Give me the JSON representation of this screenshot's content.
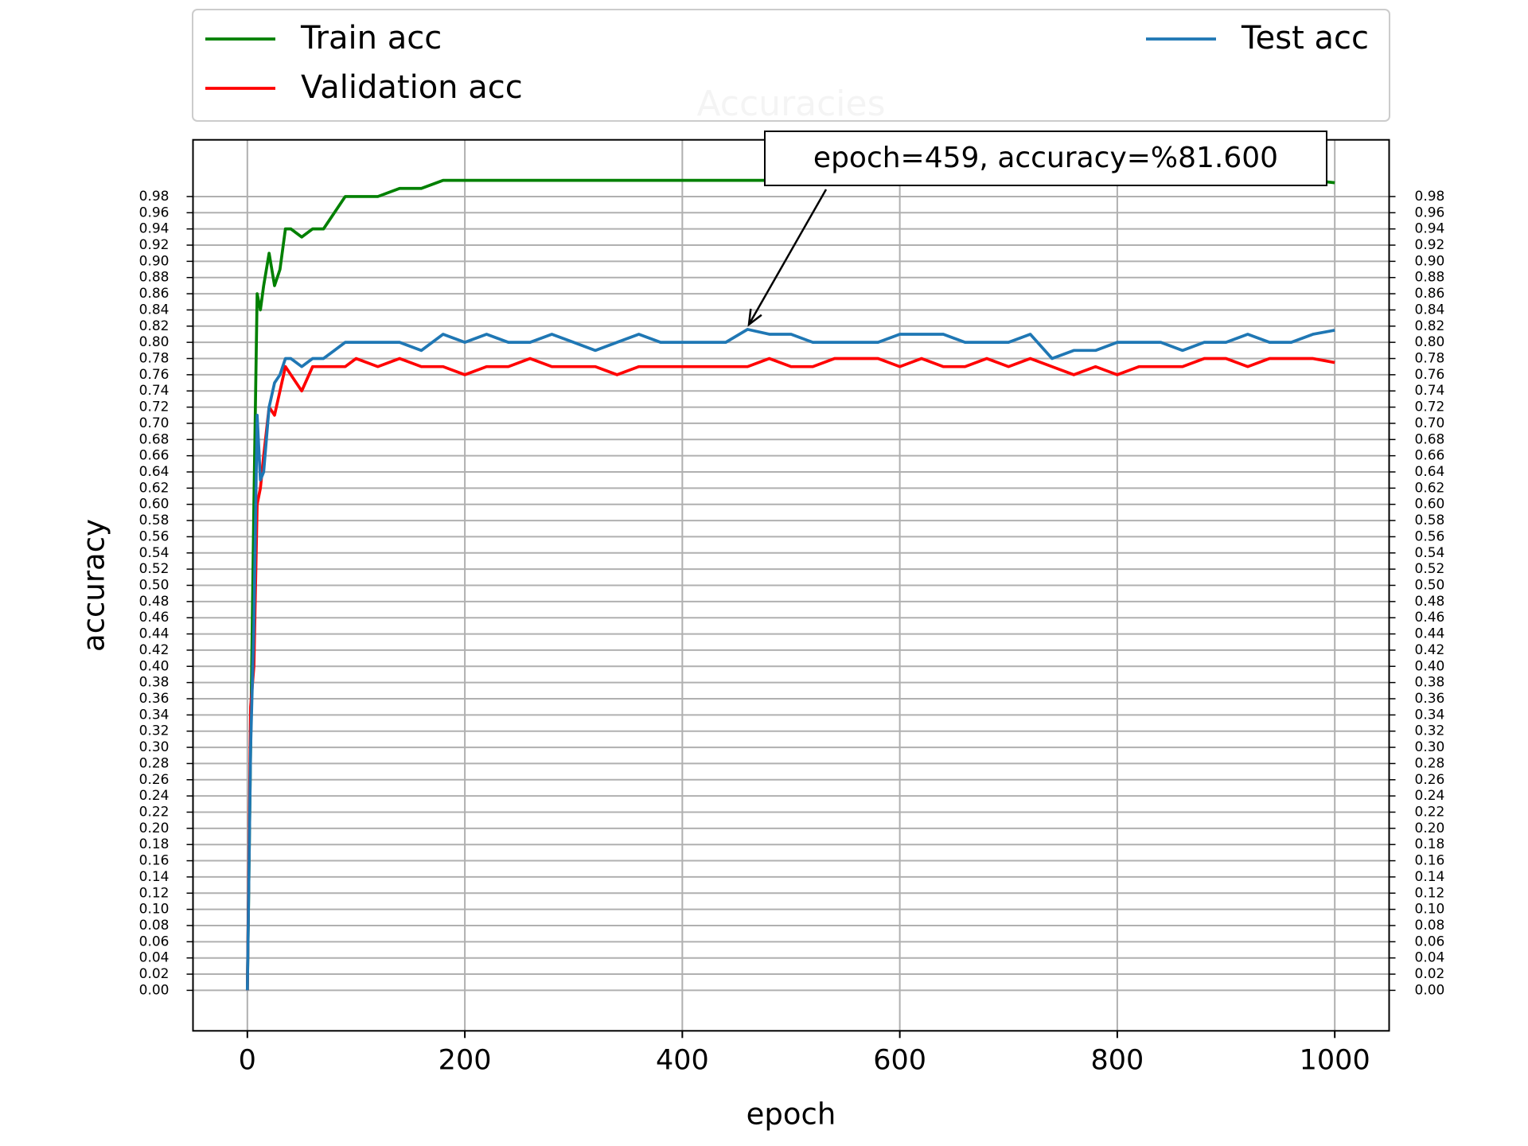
{
  "chart_data": {
    "type": "line",
    "title": "Accuracies",
    "xlabel": "epoch",
    "ylabel": "accuracy",
    "x": [
      0,
      3,
      6,
      9,
      12,
      15,
      20,
      25,
      30,
      35,
      40,
      50,
      60,
      70,
      80,
      90,
      100,
      120,
      140,
      160,
      180,
      200,
      220,
      240,
      260,
      280,
      300,
      320,
      340,
      360,
      380,
      400,
      420,
      440,
      460,
      480,
      500,
      520,
      540,
      560,
      580,
      600,
      620,
      640,
      660,
      680,
      700,
      720,
      740,
      760,
      780,
      800,
      820,
      840,
      860,
      880,
      900,
      920,
      940,
      960,
      980,
      1000
    ],
    "series": [
      {
        "name": "Train acc",
        "color": "#008000",
        "values": [
          0,
          0.3,
          0.6,
          0.86,
          0.84,
          0.87,
          0.91,
          0.87,
          0.89,
          0.94,
          0.94,
          0.93,
          0.94,
          0.94,
          0.96,
          0.98,
          0.98,
          0.98,
          0.99,
          0.99,
          1.0,
          1.0,
          1.0,
          1.0,
          1.0,
          1.0,
          1.0,
          1.0,
          1.0,
          1.0,
          1.0,
          1.0,
          1.0,
          1.0,
          1.0,
          1.0,
          1.0,
          1.0,
          1.0,
          1.0,
          1.0,
          1.0,
          1.0,
          1.0,
          1.0,
          1.0,
          1.0,
          1.0,
          1.0,
          1.0,
          1.0,
          1.0,
          1.0,
          1.0,
          1.0,
          1.0,
          1.0,
          1.0,
          1.0,
          1.0,
          1.0,
          0.997
        ]
      },
      {
        "name": "Validation acc",
        "color": "#ff0000",
        "values": [
          0,
          0.35,
          0.4,
          0.6,
          0.62,
          0.66,
          0.72,
          0.71,
          0.74,
          0.77,
          0.76,
          0.74,
          0.77,
          0.77,
          0.77,
          0.77,
          0.78,
          0.77,
          0.78,
          0.77,
          0.77,
          0.76,
          0.77,
          0.77,
          0.78,
          0.77,
          0.77,
          0.77,
          0.76,
          0.77,
          0.77,
          0.77,
          0.77,
          0.77,
          0.77,
          0.78,
          0.77,
          0.77,
          0.78,
          0.78,
          0.78,
          0.77,
          0.78,
          0.77,
          0.77,
          0.78,
          0.77,
          0.78,
          0.77,
          0.76,
          0.77,
          0.76,
          0.77,
          0.77,
          0.77,
          0.78,
          0.78,
          0.77,
          0.78,
          0.78,
          0.78,
          0.775
        ]
      },
      {
        "name": "Test acc",
        "color": "#1f77b4",
        "values": [
          0,
          0.3,
          0.45,
          0.71,
          0.63,
          0.64,
          0.72,
          0.75,
          0.76,
          0.78,
          0.78,
          0.77,
          0.78,
          0.78,
          0.79,
          0.8,
          0.8,
          0.8,
          0.8,
          0.79,
          0.81,
          0.8,
          0.81,
          0.8,
          0.8,
          0.81,
          0.8,
          0.79,
          0.8,
          0.81,
          0.8,
          0.8,
          0.8,
          0.8,
          0.816,
          0.81,
          0.81,
          0.8,
          0.8,
          0.8,
          0.8,
          0.81,
          0.81,
          0.81,
          0.8,
          0.8,
          0.8,
          0.81,
          0.78,
          0.79,
          0.79,
          0.8,
          0.8,
          0.8,
          0.79,
          0.8,
          0.8,
          0.81,
          0.8,
          0.8,
          0.81,
          0.815
        ]
      }
    ],
    "annotation": {
      "text": "epoch=459, accuracy=%81.600",
      "x": 459,
      "y": 0.816
    },
    "xlim": [
      -50,
      1050
    ],
    "ylim": [
      -0.05,
      1.05
    ],
    "xticks": [
      0,
      200,
      400,
      600,
      800,
      1000
    ],
    "yticks": [
      {
        "value": 0,
        "label": "0.00"
      },
      {
        "value": 0.02,
        "label": "0.02"
      },
      {
        "value": 0.04,
        "label": "0.04"
      },
      {
        "value": 0.06,
        "label": "0.06"
      },
      {
        "value": 0.08,
        "label": "0.08"
      },
      {
        "value": 0.1,
        "label": "0.10"
      },
      {
        "value": 0.12,
        "label": "0.12"
      },
      {
        "value": 0.14,
        "label": "0.14"
      },
      {
        "value": 0.16,
        "label": "0.16"
      },
      {
        "value": 0.18,
        "label": "0.18"
      },
      {
        "value": 0.2,
        "label": "0.20"
      },
      {
        "value": 0.22,
        "label": "0.22"
      },
      {
        "value": 0.24,
        "label": "0.24"
      },
      {
        "value": 0.26,
        "label": "0.26"
      },
      {
        "value": 0.28,
        "label": "0.28"
      },
      {
        "value": 0.3,
        "label": "0.30"
      },
      {
        "value": 0.32,
        "label": "0.32"
      },
      {
        "value": 0.34,
        "label": "0.34"
      },
      {
        "value": 0.36,
        "label": "0.36"
      },
      {
        "value": 0.38,
        "label": "0.38"
      },
      {
        "value": 0.4,
        "label": "0.40"
      },
      {
        "value": 0.42,
        "label": "0.42"
      },
      {
        "value": 0.44,
        "label": "0.44"
      },
      {
        "value": 0.46,
        "label": "0.46"
      },
      {
        "value": 0.48,
        "label": "0.48"
      },
      {
        "value": 0.5,
        "label": "0.50"
      },
      {
        "value": 0.52,
        "label": "0.52"
      },
      {
        "value": 0.54,
        "label": "0.54"
      },
      {
        "value": 0.56,
        "label": "0.56"
      },
      {
        "value": 0.58,
        "label": "0.58"
      },
      {
        "value": 0.6,
        "label": "0.60"
      },
      {
        "value": 0.62,
        "label": "0.62"
      },
      {
        "value": 0.64,
        "label": "0.64"
      },
      {
        "value": 0.66,
        "label": "0.66"
      },
      {
        "value": 0.68,
        "label": "0.68"
      },
      {
        "value": 0.7,
        "label": "0.70"
      },
      {
        "value": 0.72,
        "label": "0.72"
      },
      {
        "value": 0.74,
        "label": "0.74"
      },
      {
        "value": 0.76,
        "label": "0.76"
      },
      {
        "value": 0.78,
        "label": "0.78"
      },
      {
        "value": 0.8,
        "label": "0.80"
      },
      {
        "value": 0.82,
        "label": "0.82"
      },
      {
        "value": 0.84,
        "label": "0.84"
      },
      {
        "value": 0.86,
        "label": "0.86"
      },
      {
        "value": 0.88,
        "label": "0.88"
      },
      {
        "value": 0.9,
        "label": "0.90"
      },
      {
        "value": 0.92,
        "label": "0.92"
      },
      {
        "value": 0.94,
        "label": "0.94"
      },
      {
        "value": 0.96,
        "label": "0.96"
      },
      {
        "value": 0.98,
        "label": "0.98"
      }
    ],
    "grid": true,
    "legend": "upper center"
  }
}
